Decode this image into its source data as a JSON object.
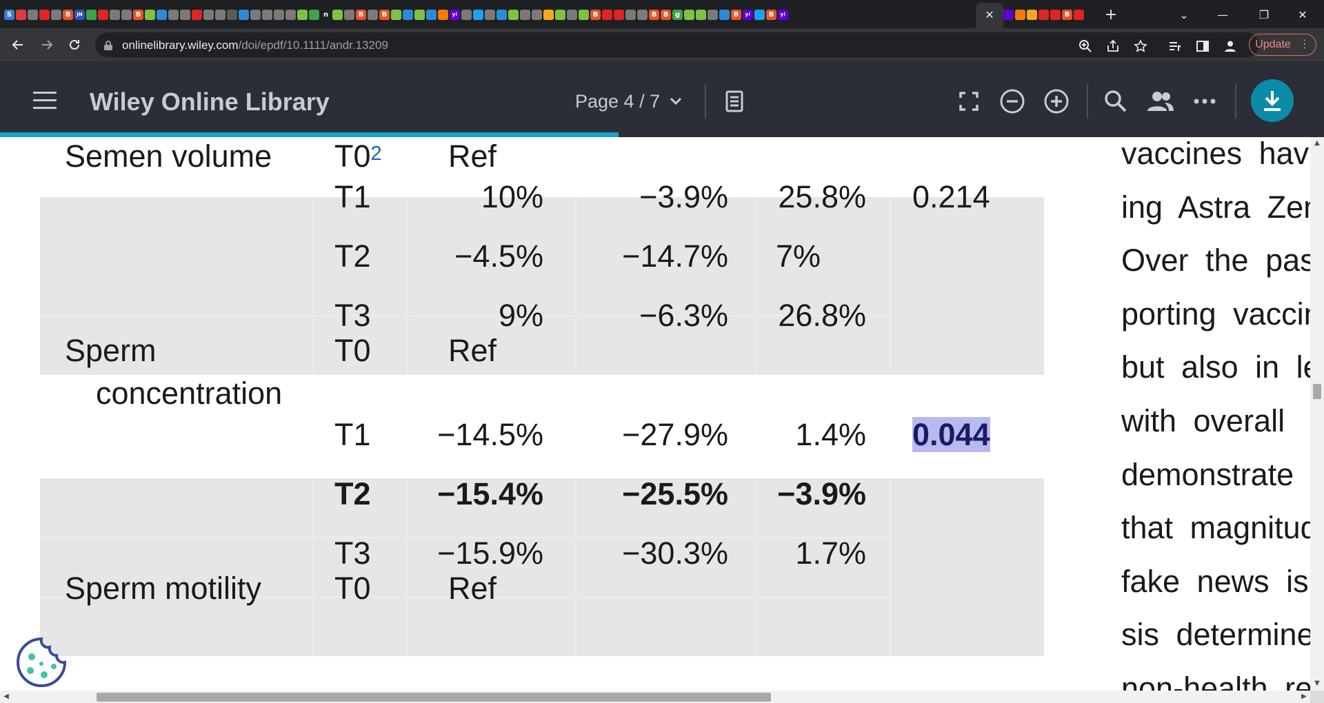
{
  "browser": {
    "url_host": "onlinelibrary.wiley.com",
    "url_path": "/doi/epdf/10.1111/andr.13209",
    "update_label": "Update",
    "tab_favicons": [
      {
        "glyph": "S",
        "color": "#3a7bd5"
      },
      {
        "glyph": "",
        "color": "#e33b3b"
      },
      {
        "glyph": "",
        "color": "#7a7a7a"
      },
      {
        "glyph": "",
        "color": "#e02424"
      },
      {
        "glyph": "",
        "color": "#7a7a7a"
      },
      {
        "glyph": "B",
        "color": "#e8542a"
      },
      {
        "glyph": "JN",
        "color": "#2e55b8"
      },
      {
        "glyph": "",
        "color": "#3fa34d"
      },
      {
        "glyph": "",
        "color": "#e02424"
      },
      {
        "glyph": "",
        "color": "#7a7a7a"
      },
      {
        "glyph": "",
        "color": "#7a7a7a"
      },
      {
        "glyph": "B",
        "color": "#e8542a"
      },
      {
        "glyph": "",
        "color": "#7dc242"
      },
      {
        "glyph": "",
        "color": "#2c8bd6"
      },
      {
        "glyph": "",
        "color": "#7a7a7a"
      },
      {
        "glyph": "",
        "color": "#7a7a7a"
      },
      {
        "glyph": "",
        "color": "#e02424"
      },
      {
        "glyph": "",
        "color": "#7a7a7a"
      },
      {
        "glyph": "",
        "color": "#7a7a7a"
      },
      {
        "glyph": "",
        "color": "#5a5a5a"
      },
      {
        "glyph": "",
        "color": "#2c8bd6"
      },
      {
        "glyph": "",
        "color": "#7a7a7a"
      },
      {
        "glyph": "",
        "color": "#7a7a7a"
      },
      {
        "glyph": "",
        "color": "#7a7a7a"
      },
      {
        "glyph": "",
        "color": "#7a7a7a"
      },
      {
        "glyph": "",
        "color": "#7dc242"
      },
      {
        "glyph": "",
        "color": "#3fa34d"
      },
      {
        "glyph": "n",
        "color": "#202020"
      },
      {
        "glyph": "",
        "color": "#7dc242"
      },
      {
        "glyph": "",
        "color": "#7a7a7a"
      },
      {
        "glyph": "B",
        "color": "#e8542a"
      },
      {
        "glyph": "",
        "color": "#7a7a7a"
      },
      {
        "glyph": "B",
        "color": "#e8542a"
      },
      {
        "glyph": "",
        "color": "#7dc242"
      },
      {
        "glyph": "",
        "color": "#2c8bd6"
      },
      {
        "glyph": "",
        "color": "#7dc242"
      },
      {
        "glyph": "",
        "color": "#2c8bd6"
      },
      {
        "glyph": "",
        "color": "#f57c00"
      },
      {
        "glyph": "y!",
        "color": "#6001d2"
      },
      {
        "glyph": "",
        "color": "#7a7a7a"
      },
      {
        "glyph": "",
        "color": "#1da1f2"
      },
      {
        "glyph": "",
        "color": "#7a7a7a"
      },
      {
        "glyph": "",
        "color": "#2c8bd6"
      },
      {
        "glyph": "",
        "color": "#7dc242"
      },
      {
        "glyph": "",
        "color": "#7a7a7a"
      },
      {
        "glyph": "",
        "color": "#7a7a7a"
      },
      {
        "glyph": "",
        "color": "#f5a623"
      },
      {
        "glyph": "",
        "color": "#7dc242"
      },
      {
        "glyph": "",
        "color": "#7a7a7a"
      },
      {
        "glyph": "",
        "color": "#7dc242"
      },
      {
        "glyph": "B",
        "color": "#e8542a"
      },
      {
        "glyph": "",
        "color": "#e02424"
      },
      {
        "glyph": "",
        "color": "#e02424"
      },
      {
        "glyph": "",
        "color": "#7a7a7a"
      },
      {
        "glyph": "",
        "color": "#7a7a7a"
      },
      {
        "glyph": "B",
        "color": "#e8542a"
      },
      {
        "glyph": "B",
        "color": "#e8542a"
      },
      {
        "glyph": "g",
        "color": "#3fa34d"
      },
      {
        "glyph": "",
        "color": "#7dc242"
      },
      {
        "glyph": "",
        "color": "#7dc242"
      },
      {
        "glyph": "",
        "color": "#7a7a7a"
      },
      {
        "glyph": "",
        "color": "#2c8bd6"
      },
      {
        "glyph": "B",
        "color": "#e8542a"
      },
      {
        "glyph": "y!",
        "color": "#6001d2"
      },
      {
        "glyph": "",
        "color": "#1da1f2"
      },
      {
        "glyph": "B",
        "color": "#e8542a"
      },
      {
        "glyph": "y!",
        "color": "#6001d2"
      }
    ],
    "tab_favicons_right": [
      {
        "glyph": "",
        "color": "#6001d2"
      },
      {
        "glyph": "",
        "color": "#f57c00"
      },
      {
        "glyph": "",
        "color": "#f5a623"
      },
      {
        "glyph": "",
        "color": "#e02424"
      },
      {
        "glyph": "",
        "color": "#e02424"
      },
      {
        "glyph": "B",
        "color": "#e8542a"
      },
      {
        "glyph": "",
        "color": "#e02424"
      }
    ]
  },
  "reader": {
    "app_title": "Wiley Online Library",
    "page_indicator": "Page 4 / 7",
    "progress_fraction": 0.467
  },
  "table": {
    "rows": [
      {
        "label": "Semen volume",
        "label2": "",
        "time": "T0",
        "time_sup": "2",
        "est": "Ref",
        "lo": "",
        "hi": "",
        "p": "",
        "bold": false,
        "highlight_p": false
      },
      {
        "label": "",
        "label2": "",
        "time": "T1",
        "time_sup": "",
        "est": "10%",
        "lo": "−3.9%",
        "hi": "25.8%",
        "p": "0.214",
        "bold": false,
        "highlight_p": false
      },
      {
        "label": "",
        "label2": "",
        "time": "T2",
        "time_sup": "",
        "est": "−4.5%",
        "lo": "−14.7%",
        "hi": "7%",
        "p": "",
        "bold": false,
        "highlight_p": false
      },
      {
        "label": "",
        "label2": "",
        "time": "T3",
        "time_sup": "",
        "est": "9%",
        "lo": "−6.3%",
        "hi": "26.8%",
        "p": "",
        "bold": false,
        "highlight_p": false
      },
      {
        "label": "Sperm",
        "label2": "concentration",
        "time": "T0",
        "time_sup": "",
        "est": "Ref",
        "lo": "",
        "hi": "",
        "p": "",
        "bold": false,
        "highlight_p": false
      },
      {
        "label": "",
        "label2": "",
        "time": "T1",
        "time_sup": "",
        "est": "−14.5%",
        "lo": "−27.9%",
        "hi": "1.4%",
        "p": "0.044",
        "bold": false,
        "highlight_p": true
      },
      {
        "label": "",
        "label2": "",
        "time": "T2",
        "time_sup": "",
        "est": "−15.4%",
        "lo": "−25.5%",
        "hi": "−3.9%",
        "p": "",
        "bold": true,
        "highlight_p": false
      },
      {
        "label": "",
        "label2": "",
        "time": "T3",
        "time_sup": "",
        "est": "−15.9%",
        "lo": "−30.3%",
        "hi": "1.7%",
        "p": "",
        "bold": false,
        "highlight_p": false
      },
      {
        "label": "Sperm motility",
        "label2": "",
        "time": "T0",
        "time_sup": "",
        "est": "Ref",
        "lo": "",
        "hi": "",
        "p": "",
        "bold": false,
        "highlight_p": false
      }
    ]
  },
  "body_text_lines": [
    "vaccines have",
    "ing Astra Zeneca",
    "Over the past",
    "porting vaccine",
    "but also in le",
    "with overall",
    "demonstrate",
    "that magnitude",
    "fake news is",
    "sis determine",
    "non-health re"
  ]
}
